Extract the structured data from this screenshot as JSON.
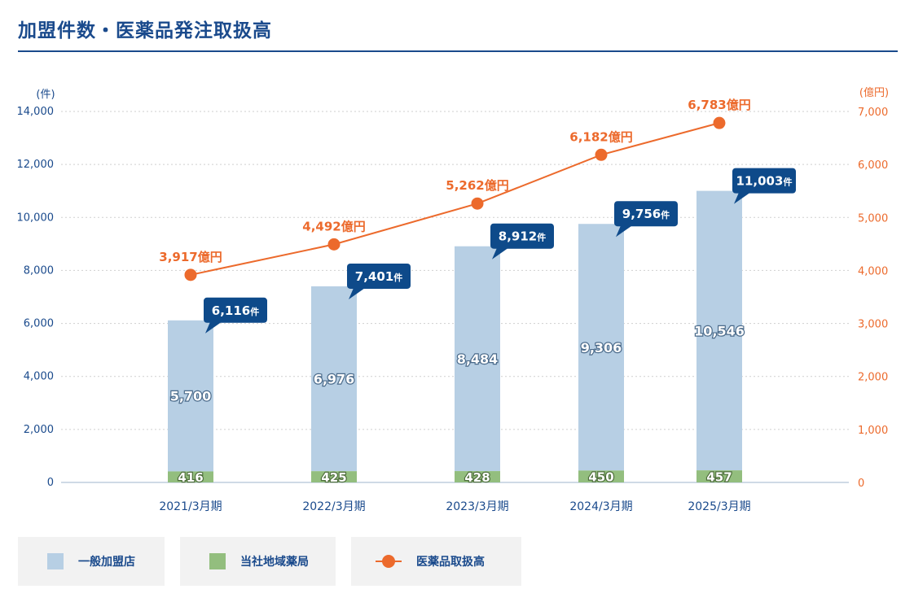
{
  "page": {
    "title": "加盟件数・医薬品発注取扱高"
  },
  "colors": {
    "title": "#1a4a8c",
    "general_store": "#b7cfe4",
    "own_pharmacy": "#93be7e",
    "line": "#ec6a2c",
    "callout": "#0e4a8a",
    "axis_left": "#1a4a8c",
    "axis_right": "#ec6a2c"
  },
  "chart_data": {
    "type": "bar",
    "categories": [
      "2021/3月期",
      "2022/3月期",
      "2023/3月期",
      "2024/3月期",
      "2025/3月期"
    ],
    "series": [
      {
        "name": "一般加盟店",
        "type": "bar",
        "stack": "count",
        "axis": "left",
        "values": [
          5700,
          6976,
          8484,
          9306,
          10546
        ],
        "labels": [
          "5,700",
          "6,976",
          "8,484",
          "9,306",
          "10,546"
        ]
      },
      {
        "name": "当社地域薬局",
        "type": "bar",
        "stack": "count",
        "axis": "left",
        "values": [
          416,
          425,
          428,
          450,
          457
        ],
        "labels": [
          "416",
          "425",
          "428",
          "450",
          "457"
        ]
      },
      {
        "name": "医薬品取扱高",
        "type": "line",
        "axis": "right",
        "values": [
          3917,
          4492,
          5262,
          6182,
          6783
        ],
        "labels": [
          "3,917億円",
          "4,492億円",
          "5,262億円",
          "6,182億円",
          "6,783億円"
        ]
      }
    ],
    "totals": {
      "values": [
        6116,
        7401,
        8912,
        9756,
        11003
      ],
      "labels": [
        "6,116",
        "7,401",
        "8,912",
        "9,756",
        "11,003"
      ],
      "unit": "件"
    },
    "y_left": {
      "unit": "(件)",
      "ylim": [
        0,
        14000
      ],
      "ticks": [
        "14,000",
        "12,000",
        "10,000",
        "8,000",
        "6,000",
        "4,000",
        "2,000",
        "0"
      ],
      "tick_values": [
        14000,
        12000,
        10000,
        8000,
        6000,
        4000,
        2000,
        0
      ]
    },
    "y_right": {
      "unit": "(億円)",
      "ylim": [
        0,
        7000
      ],
      "ticks": [
        "7,000",
        "6,000",
        "5,000",
        "4,000",
        "3,000",
        "2,000",
        "1,000",
        "0"
      ],
      "tick_values": [
        7000,
        6000,
        5000,
        4000,
        3000,
        2000,
        1000,
        0
      ]
    },
    "grid": true,
    "legend_position": "bottom"
  },
  "legend": {
    "items": [
      {
        "label": "一般加盟店",
        "kind": "square-swatch"
      },
      {
        "label": "当社地域薬局",
        "kind": "square-swatch"
      },
      {
        "label": "医薬品取扱高",
        "kind": "line-marker-swatch"
      }
    ]
  }
}
